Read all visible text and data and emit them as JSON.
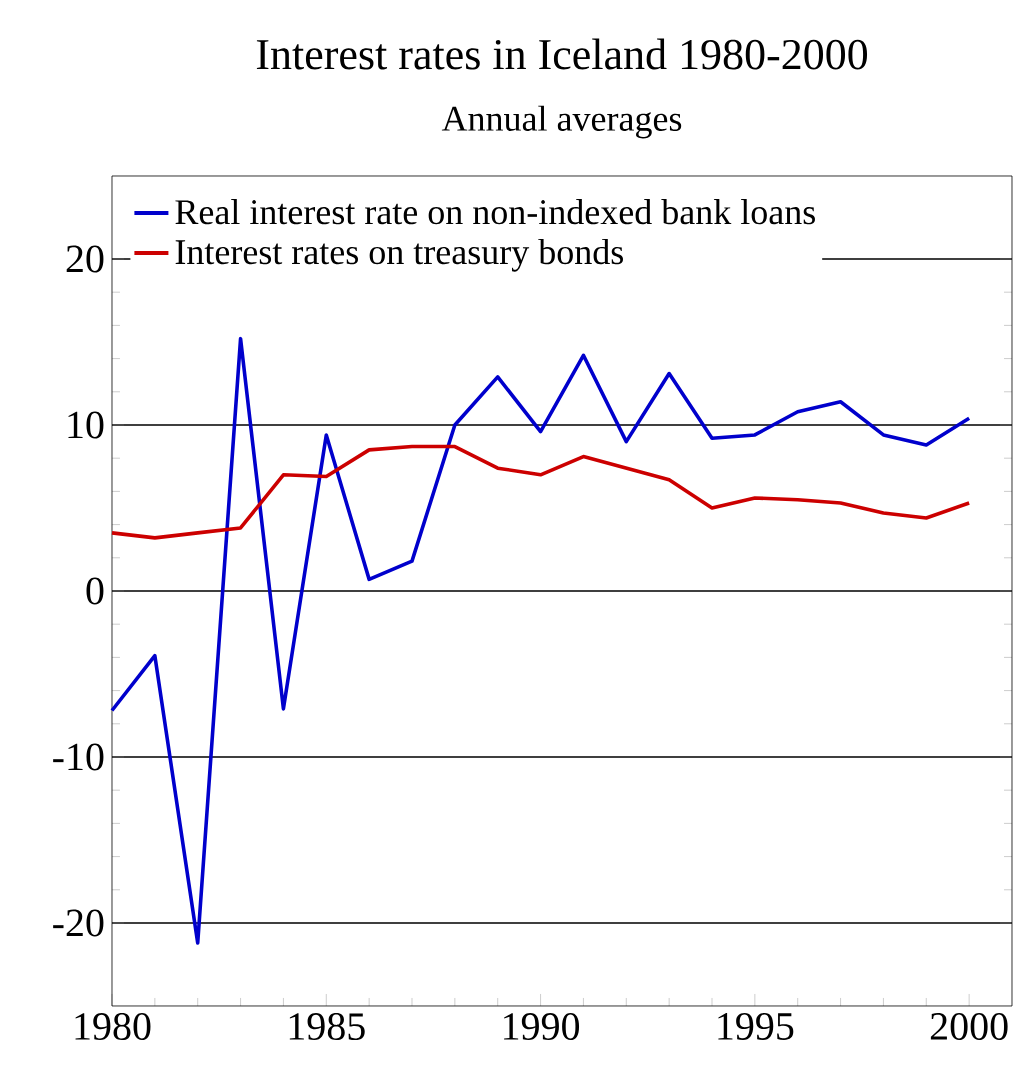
{
  "chart_data": {
    "type": "line",
    "title": "Interest rates in Iceland 1980-2000",
    "subtitle": "Annual averages",
    "x": [
      1980,
      1981,
      1982,
      1983,
      1984,
      1985,
      1986,
      1987,
      1988,
      1989,
      1990,
      1991,
      1992,
      1993,
      1994,
      1995,
      1996,
      1997,
      1998,
      1999,
      2000
    ],
    "series": [
      {
        "name": "Real interest rate on non-indexed bank loans",
        "color": "#0000cc",
        "values": [
          -7.2,
          -3.9,
          -21.2,
          15.2,
          -7.1,
          9.4,
          0.7,
          1.8,
          10,
          12.9,
          9.6,
          14.2,
          9,
          13.1,
          9.2,
          9.4,
          10.8,
          11.4,
          9.4,
          8.8,
          10.4
        ]
      },
      {
        "name": "Interest rates on treasury bonds",
        "color": "#cc0000",
        "values": [
          3.5,
          3.2,
          3.5,
          3.8,
          7.0,
          6.9,
          8.5,
          8.7,
          8.7,
          7.4,
          7.0,
          8.1,
          7.4,
          6.7,
          5.0,
          5.6,
          5.5,
          5.3,
          4.7,
          4.4,
          5.3
        ]
      }
    ],
    "xlim": [
      1980,
      2001
    ],
    "xticks": [
      1980,
      1985,
      1990,
      1995,
      2000
    ],
    "ylim": [
      -25,
      25
    ],
    "yticks": [
      -20,
      -10,
      0,
      10,
      20
    ],
    "grid": "y",
    "legend": "top left",
    "marker": "none",
    "line_style": "solid"
  }
}
